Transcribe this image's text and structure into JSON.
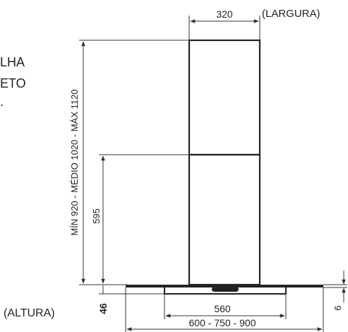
{
  "labels": {
    "width_value": "320",
    "width_caption": "(LARGURA)",
    "height_range": "MÍN 920 - MÉDIO 1020 - MÁX 1120",
    "lower_height": "595",
    "height_caption": "(ALTURA)",
    "base_height": "46",
    "glass_thickness": "6",
    "inner_width": "560",
    "glass_widths": "600 - 750 - 900",
    "cut_text_1": "LHA",
    "cut_text_2": "ETO",
    "cut_text_3": "."
  }
}
